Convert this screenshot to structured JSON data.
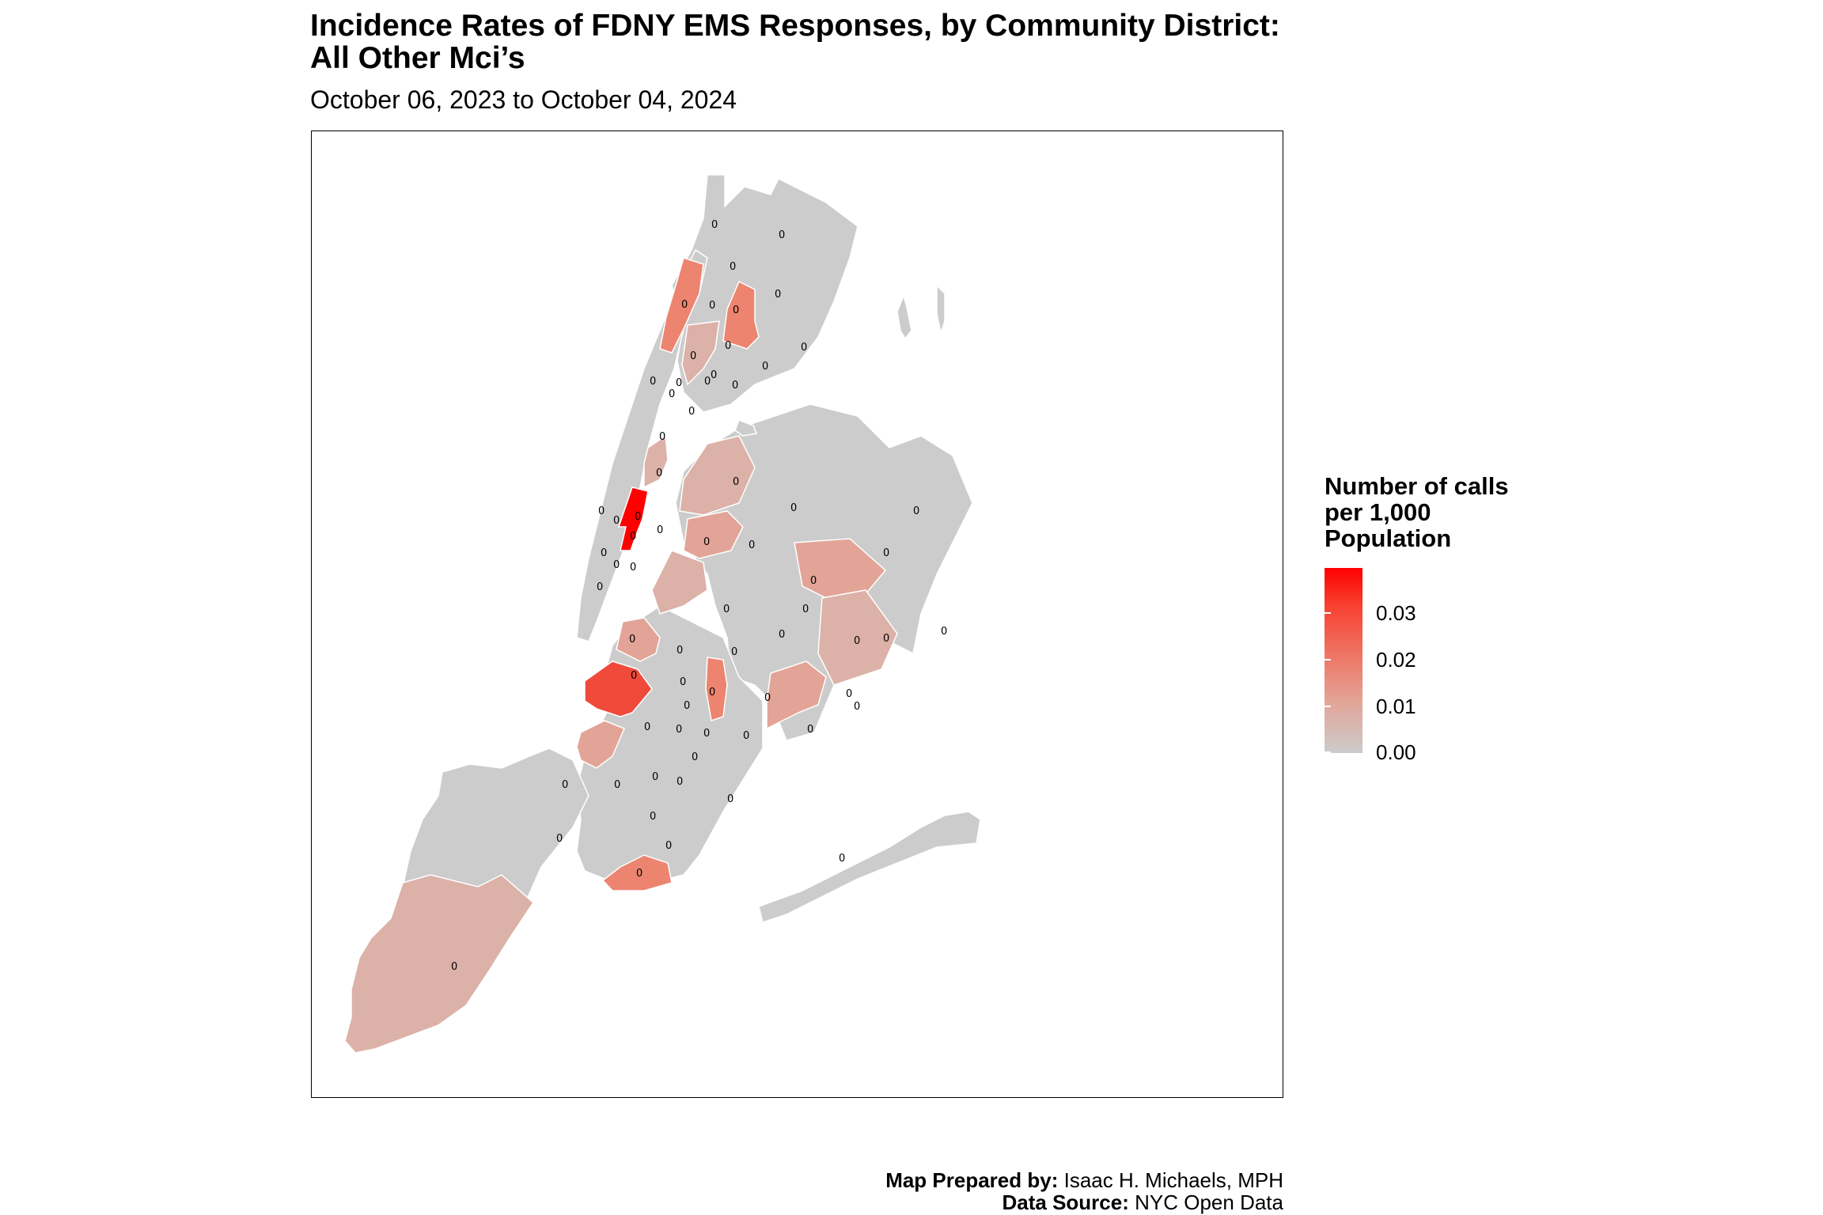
{
  "title_line1": "Incidence Rates of FDNY EMS Responses, by Community District:",
  "title_line2": "All Other Mci’s",
  "subtitle": "October 06, 2023 to October 04, 2024",
  "legend": {
    "title_lines": [
      "Number of calls",
      "per 1,000",
      "Population"
    ],
    "ticks": [
      "0.03",
      "0.02",
      "0.01",
      "0.00"
    ],
    "tick_values": [
      0.03,
      0.02,
      0.01,
      0.0
    ],
    "range": [
      0,
      0.04
    ],
    "colors": {
      "low": "#cccccc",
      "high": "#ff0000"
    }
  },
  "caption": {
    "prepared_label": "Map Prepared by:",
    "prepared_value": "Isaac H. Michaels, MPH",
    "source_label": "Data Source:",
    "source_value": "NYC Open Data"
  },
  "map": {
    "district_label_value": "0",
    "district_colors": {
      "zero": "#cccccc",
      "very_low": "#dcb1a8",
      "low": "#e2a497",
      "mid": "#ec8470",
      "high": "#f04a3b",
      "max": "#ff0000"
    }
  }
}
